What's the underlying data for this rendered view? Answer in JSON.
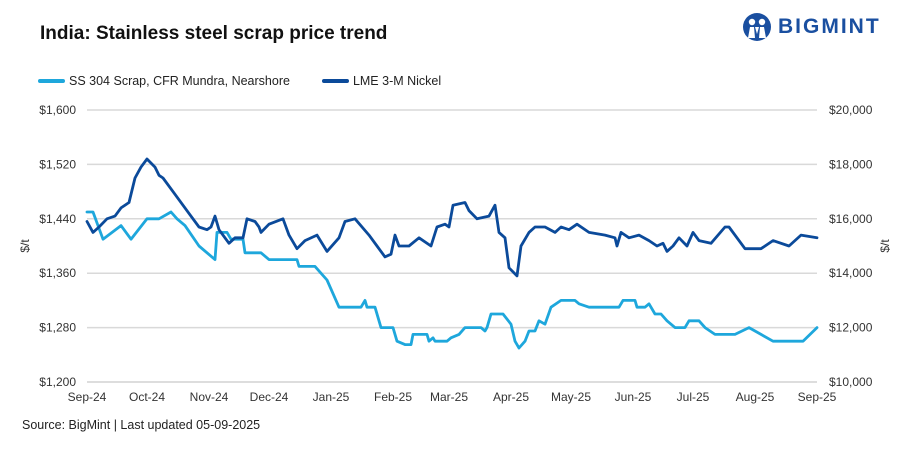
{
  "title": "India: Stainless steel scrap price trend",
  "logo": {
    "text": "BIGMINT",
    "color": "#1a4fa0"
  },
  "source": "Source: BigMint | Last updated 05-09-2025",
  "chart_data": {
    "type": "line",
    "title": "India: Stainless steel scrap price trend",
    "ylabel_left": "$/t",
    "ylabel_right": "$/t",
    "ylim_left": [
      1200,
      1600
    ],
    "ylim_right": [
      10000,
      20000
    ],
    "yticks_left": [
      "$1,200",
      "$1,280",
      "$1,360",
      "$1,440",
      "$1,520",
      "$1,600"
    ],
    "yticks_right": [
      "$10,000",
      "$12,000",
      "$14,000",
      "$16,000",
      "$18,000",
      "$20,000"
    ],
    "xlim": [
      "2024-09-01",
      "2025-09-01"
    ],
    "xticks": [
      {
        "date": "2024-09-01",
        "label": "Sep-24"
      },
      {
        "date": "2024-10-01",
        "label": "Oct-24"
      },
      {
        "date": "2024-11-01",
        "label": "Nov-24"
      },
      {
        "date": "2024-12-01",
        "label": "Dec-24"
      },
      {
        "date": "2025-01-01",
        "label": "Jan-25"
      },
      {
        "date": "2025-02-01",
        "label": "Feb-25"
      },
      {
        "date": "2025-03-01",
        "label": "Mar-25"
      },
      {
        "date": "2025-04-01",
        "label": "Apr-25"
      },
      {
        "date": "2025-05-01",
        "label": "May-25"
      },
      {
        "date": "2025-06-01",
        "label": "Jun-25"
      },
      {
        "date": "2025-07-01",
        "label": "Jul-25"
      },
      {
        "date": "2025-08-01",
        "label": "Aug-25"
      },
      {
        "date": "2025-09-01",
        "label": "Sep-25"
      }
    ],
    "grid": "horizontal",
    "legend": "top-left",
    "series": [
      {
        "name": "SS 304 Scrap, CFR Mundra, Nearshore",
        "axis": "left",
        "color": "#1ea7dc",
        "points": [
          [
            "2024-09-01",
            1450
          ],
          [
            "2024-09-04",
            1450
          ],
          [
            "2024-09-09",
            1410
          ],
          [
            "2024-09-18",
            1430
          ],
          [
            "2024-09-23",
            1410
          ],
          [
            "2024-10-01",
            1440
          ],
          [
            "2024-10-07",
            1440
          ],
          [
            "2024-10-13",
            1450
          ],
          [
            "2024-10-16",
            1440
          ],
          [
            "2024-10-20",
            1430
          ],
          [
            "2024-10-27",
            1400
          ],
          [
            "2024-11-04",
            1380
          ],
          [
            "2024-11-05",
            1420
          ],
          [
            "2024-11-10",
            1420
          ],
          [
            "2024-11-12",
            1410
          ],
          [
            "2024-11-18",
            1410
          ],
          [
            "2024-11-19",
            1390
          ],
          [
            "2024-11-27",
            1390
          ],
          [
            "2024-12-01",
            1380
          ],
          [
            "2024-12-15",
            1380
          ],
          [
            "2024-12-16",
            1370
          ],
          [
            "2024-12-24",
            1370
          ],
          [
            "2024-12-30",
            1350
          ],
          [
            "2025-01-05",
            1310
          ],
          [
            "2025-01-16",
            1310
          ],
          [
            "2025-01-18",
            1320
          ],
          [
            "2025-01-19",
            1310
          ],
          [
            "2025-01-23",
            1310
          ],
          [
            "2025-01-26",
            1280
          ],
          [
            "2025-02-01",
            1280
          ],
          [
            "2025-02-03",
            1260
          ],
          [
            "2025-02-07",
            1255
          ],
          [
            "2025-02-10",
            1255
          ],
          [
            "2025-02-11",
            1270
          ],
          [
            "2025-02-18",
            1270
          ],
          [
            "2025-02-19",
            1260
          ],
          [
            "2025-02-21",
            1265
          ],
          [
            "2025-02-22",
            1260
          ],
          [
            "2025-02-28",
            1260
          ],
          [
            "2025-03-02",
            1265
          ],
          [
            "2025-03-06",
            1270
          ],
          [
            "2025-03-09",
            1280
          ],
          [
            "2025-03-17",
            1280
          ],
          [
            "2025-03-19",
            1275
          ],
          [
            "2025-03-20",
            1280
          ],
          [
            "2025-03-22",
            1300
          ],
          [
            "2025-03-28",
            1300
          ],
          [
            "2025-04-01",
            1285
          ],
          [
            "2025-04-03",
            1260
          ],
          [
            "2025-04-05",
            1250
          ],
          [
            "2025-04-08",
            1260
          ],
          [
            "2025-04-10",
            1275
          ],
          [
            "2025-04-13",
            1275
          ],
          [
            "2025-04-15",
            1290
          ],
          [
            "2025-04-18",
            1285
          ],
          [
            "2025-04-21",
            1310
          ],
          [
            "2025-04-26",
            1320
          ],
          [
            "2025-05-03",
            1320
          ],
          [
            "2025-05-05",
            1315
          ],
          [
            "2025-05-10",
            1310
          ],
          [
            "2025-05-25",
            1310
          ],
          [
            "2025-05-27",
            1320
          ],
          [
            "2025-06-02",
            1320
          ],
          [
            "2025-06-03",
            1310
          ],
          [
            "2025-06-07",
            1310
          ],
          [
            "2025-06-09",
            1315
          ],
          [
            "2025-06-12",
            1300
          ],
          [
            "2025-06-15",
            1300
          ],
          [
            "2025-06-18",
            1290
          ],
          [
            "2025-06-22",
            1280
          ],
          [
            "2025-06-27",
            1280
          ],
          [
            "2025-06-29",
            1290
          ],
          [
            "2025-07-04",
            1290
          ],
          [
            "2025-07-07",
            1280
          ],
          [
            "2025-07-12",
            1270
          ],
          [
            "2025-07-22",
            1270
          ],
          [
            "2025-07-29",
            1280
          ],
          [
            "2025-08-10",
            1260
          ],
          [
            "2025-08-25",
            1260
          ],
          [
            "2025-09-01",
            1280
          ]
        ]
      },
      {
        "name": "LME 3-M Nickel",
        "axis": "right",
        "color": "#0b4a9a",
        "points": [
          [
            "2024-09-01",
            15900
          ],
          [
            "2024-09-04",
            15500
          ],
          [
            "2024-09-07",
            15700
          ],
          [
            "2024-09-11",
            16000
          ],
          [
            "2024-09-15",
            16100
          ],
          [
            "2024-09-18",
            16400
          ],
          [
            "2024-09-22",
            16600
          ],
          [
            "2024-09-25",
            17500
          ],
          [
            "2024-09-28",
            17900
          ],
          [
            "2024-10-01",
            18200
          ],
          [
            "2024-10-05",
            17900
          ],
          [
            "2024-10-07",
            17600
          ],
          [
            "2024-10-09",
            17500
          ],
          [
            "2024-10-15",
            16900
          ],
          [
            "2024-10-22",
            16200
          ],
          [
            "2024-10-27",
            15700
          ],
          [
            "2024-10-31",
            15600
          ],
          [
            "2024-11-02",
            15700
          ],
          [
            "2024-11-04",
            16100
          ],
          [
            "2024-11-06",
            15600
          ],
          [
            "2024-11-11",
            15100
          ],
          [
            "2024-11-14",
            15300
          ],
          [
            "2024-11-18",
            15300
          ],
          [
            "2024-11-20",
            16000
          ],
          [
            "2024-11-24",
            15900
          ],
          [
            "2024-11-26",
            15700
          ],
          [
            "2024-11-27",
            15500
          ],
          [
            "2024-12-01",
            15800
          ],
          [
            "2024-12-08",
            16000
          ],
          [
            "2024-12-11",
            15400
          ],
          [
            "2024-12-15",
            14900
          ],
          [
            "2024-12-19",
            15200
          ],
          [
            "2024-12-25",
            15400
          ],
          [
            "2024-12-30",
            14800
          ],
          [
            "2025-01-05",
            15300
          ],
          [
            "2025-01-08",
            15900
          ],
          [
            "2025-01-13",
            16000
          ],
          [
            "2025-01-20",
            15400
          ],
          [
            "2025-01-24",
            15000
          ],
          [
            "2025-01-28",
            14600
          ],
          [
            "2025-01-31",
            14700
          ],
          [
            "2025-02-02",
            15400
          ],
          [
            "2025-02-04",
            15000
          ],
          [
            "2025-02-09",
            15000
          ],
          [
            "2025-02-14",
            15300
          ],
          [
            "2025-02-20",
            15000
          ],
          [
            "2025-02-23",
            15700
          ],
          [
            "2025-02-27",
            15800
          ],
          [
            "2025-03-01",
            15700
          ],
          [
            "2025-03-03",
            16500
          ],
          [
            "2025-03-09",
            16600
          ],
          [
            "2025-03-11",
            16300
          ],
          [
            "2025-03-15",
            16000
          ],
          [
            "2025-03-21",
            16100
          ],
          [
            "2025-03-24",
            16500
          ],
          [
            "2025-03-26",
            15500
          ],
          [
            "2025-03-29",
            15300
          ],
          [
            "2025-03-31",
            14200
          ],
          [
            "2025-04-04",
            13900
          ],
          [
            "2025-04-06",
            15000
          ],
          [
            "2025-04-10",
            15500
          ],
          [
            "2025-04-13",
            15700
          ],
          [
            "2025-04-18",
            15700
          ],
          [
            "2025-04-23",
            15500
          ],
          [
            "2025-04-26",
            15700
          ],
          [
            "2025-04-30",
            15600
          ],
          [
            "2025-05-04",
            15800
          ],
          [
            "2025-05-10",
            15500
          ],
          [
            "2025-05-18",
            15400
          ],
          [
            "2025-05-23",
            15300
          ],
          [
            "2025-05-24",
            15000
          ],
          [
            "2025-05-26",
            15500
          ],
          [
            "2025-05-30",
            15300
          ],
          [
            "2025-06-04",
            15400
          ],
          [
            "2025-06-09",
            15200
          ],
          [
            "2025-06-13",
            15000
          ],
          [
            "2025-06-16",
            15100
          ],
          [
            "2025-06-18",
            14800
          ],
          [
            "2025-06-21",
            15000
          ],
          [
            "2025-06-24",
            15300
          ],
          [
            "2025-06-28",
            15000
          ],
          [
            "2025-07-01",
            15500
          ],
          [
            "2025-07-04",
            15200
          ],
          [
            "2025-07-10",
            15100
          ],
          [
            "2025-07-17",
            15700
          ],
          [
            "2025-07-19",
            15700
          ],
          [
            "2025-07-27",
            14900
          ],
          [
            "2025-08-04",
            14900
          ],
          [
            "2025-08-10",
            15200
          ],
          [
            "2025-08-18",
            15000
          ],
          [
            "2025-08-24",
            15400
          ],
          [
            "2025-09-01",
            15300
          ]
        ]
      }
    ]
  }
}
